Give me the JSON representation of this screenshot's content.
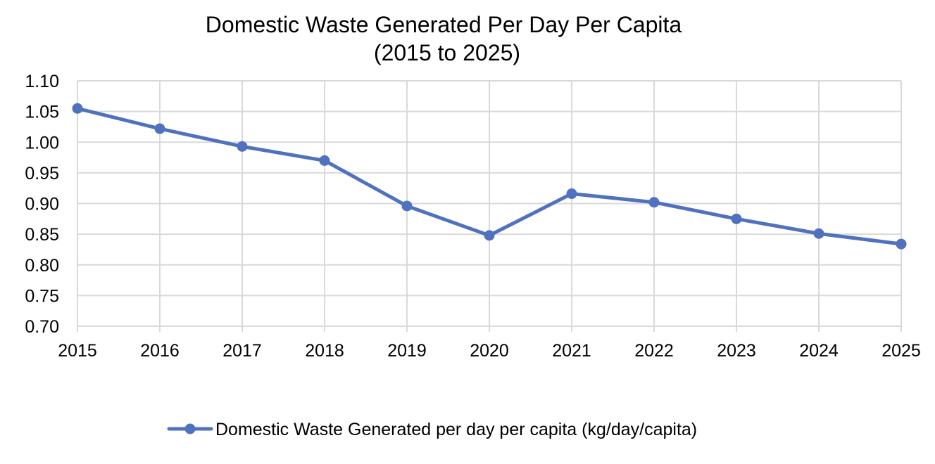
{
  "chart_data": {
    "type": "line",
    "title": "Domestic Waste Generated Per Day Per Capita",
    "subtitle": "(2015 to 2025)",
    "xlabel": "",
    "ylabel": "",
    "categories": [
      "2015",
      "2016",
      "2017",
      "2018",
      "2019",
      "2020",
      "2021",
      "2022",
      "2023",
      "2024",
      "2025"
    ],
    "series": [
      {
        "name": "Domestic Waste Generated per day per capita (kg/day/capita)",
        "color": "#4f71be",
        "values": [
          1.055,
          1.022,
          0.993,
          0.97,
          0.896,
          0.848,
          0.916,
          0.902,
          0.875,
          0.851,
          0.834
        ]
      }
    ],
    "ylim": [
      0.7,
      1.1
    ],
    "yticks": [
      "0.70",
      "0.75",
      "0.80",
      "0.85",
      "0.90",
      "0.95",
      "1.00",
      "1.05",
      "1.10"
    ],
    "grid": true,
    "legend_position": "bottom"
  }
}
